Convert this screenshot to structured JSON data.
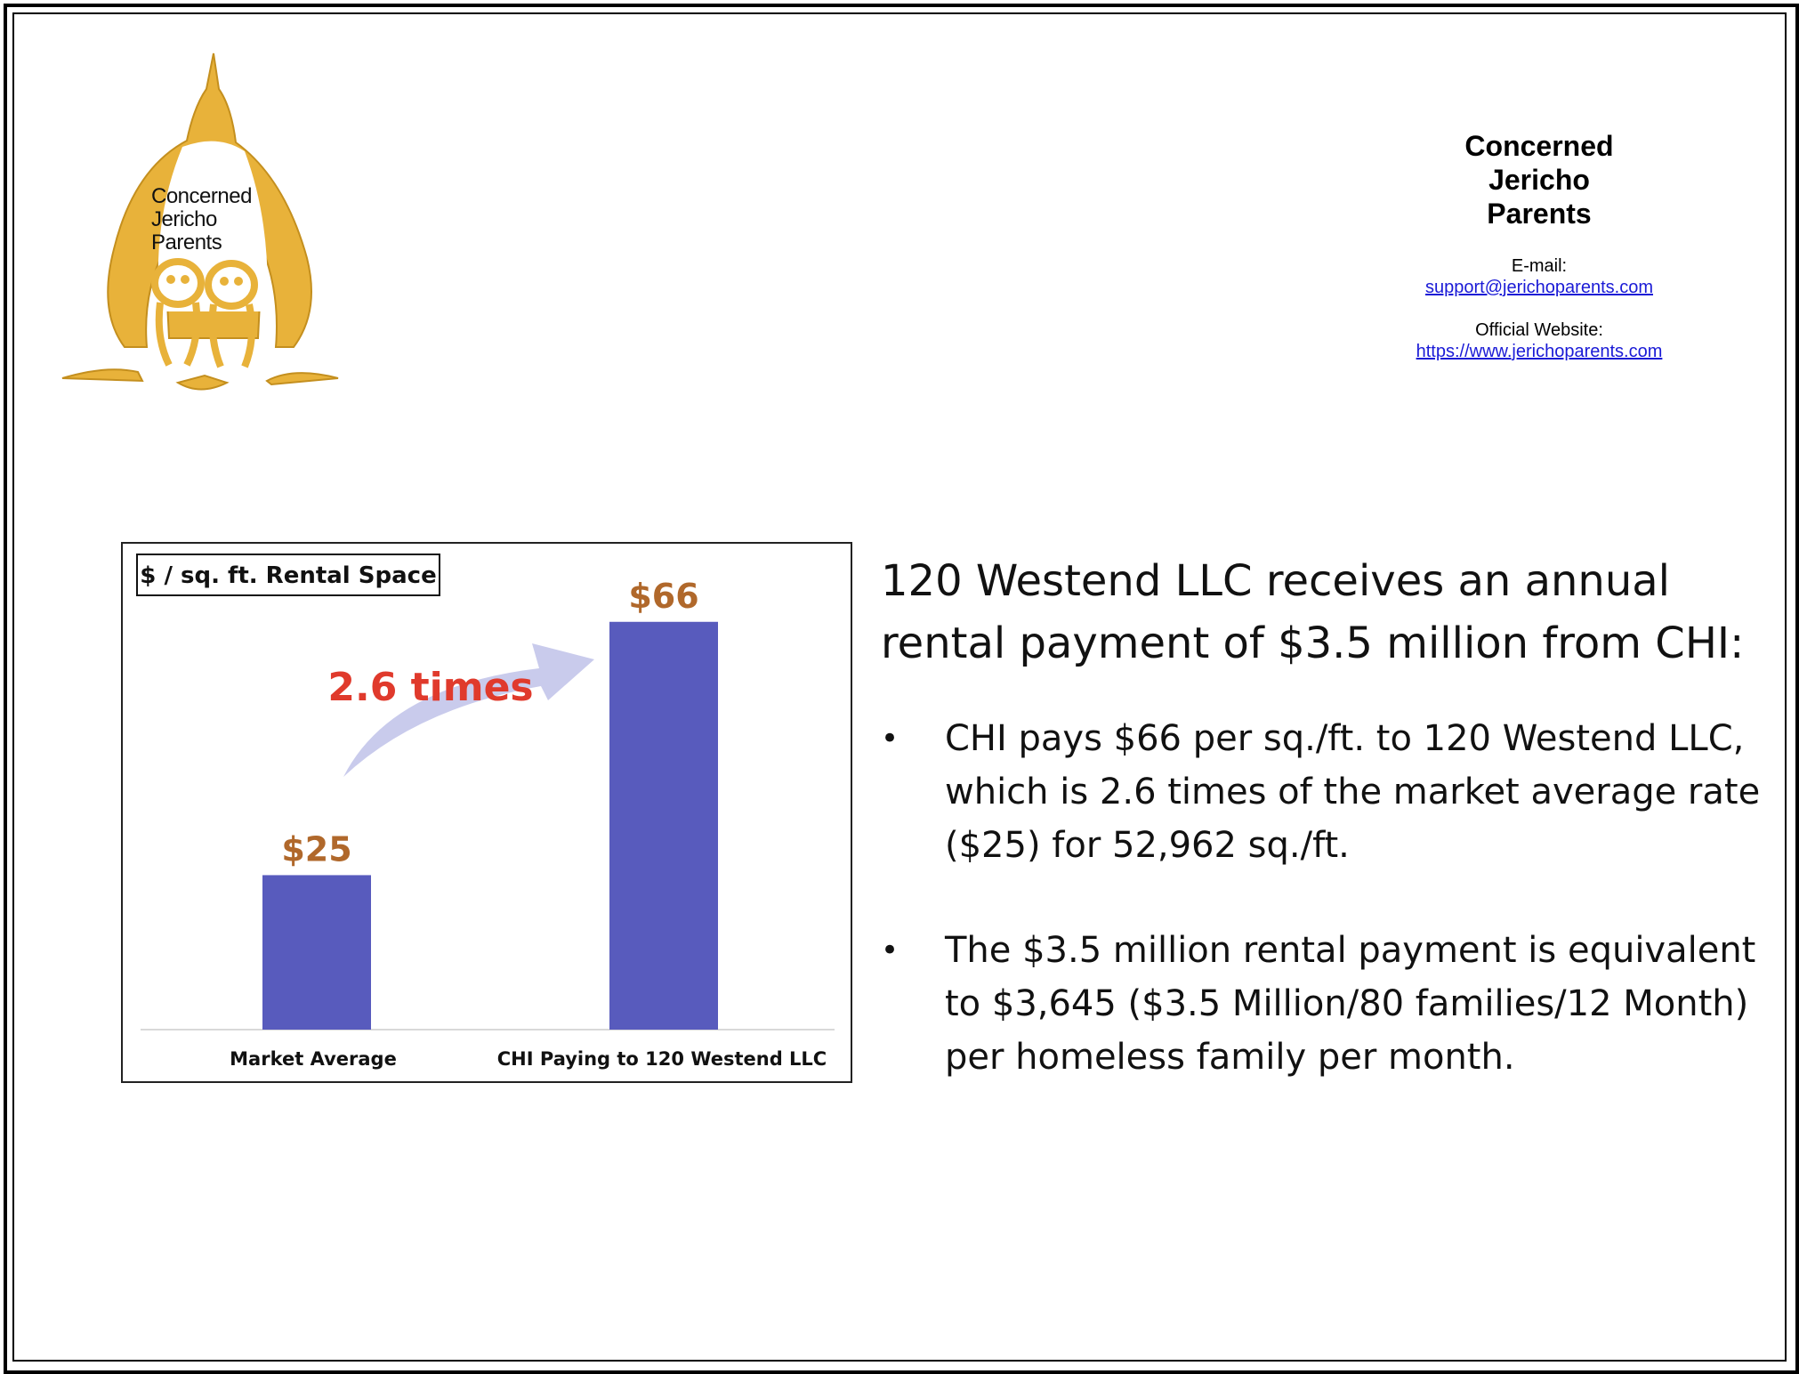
{
  "logo": {
    "text_lines": [
      "Concerned",
      "Jericho",
      "Parents"
    ],
    "primary_color": "#e8b23a"
  },
  "contact": {
    "org_lines": [
      "Concerned",
      "Jericho",
      "Parents"
    ],
    "email_label": "E-mail:",
    "email": "support@jerichoparents.com",
    "website_label": "Official Website:",
    "website": "https://www.jerichoparents.com"
  },
  "chart_data": {
    "type": "bar",
    "title": "$ / sq. ft. Rental Space",
    "categories": [
      "Market Average",
      "CHI Paying to 120 Westend LLC"
    ],
    "values": [
      25,
      66
    ],
    "value_labels": [
      "$25",
      "$66"
    ],
    "annotation": "2.6 times",
    "ylim": [
      0,
      70
    ],
    "grid": false,
    "bar_color": "#585bbd",
    "value_label_color": "#b0682b",
    "annotation_color": "#e03a2c",
    "arrow_color": "#c9cbec"
  },
  "content": {
    "heading": "120 Westend LLC receives an annual rental payment of $3.5 million from CHI:",
    "bullet_symbol": "•",
    "bullets": [
      "CHI pays $66 per sq./ft. to 120 Westend LLC, which is 2.6 times of the market average rate ($25) for 52,962 sq./ft.",
      "The $3.5 million rental payment is equivalent to $3,645 ($3.5 Million/80 families/12 Month) per homeless family per month."
    ]
  }
}
